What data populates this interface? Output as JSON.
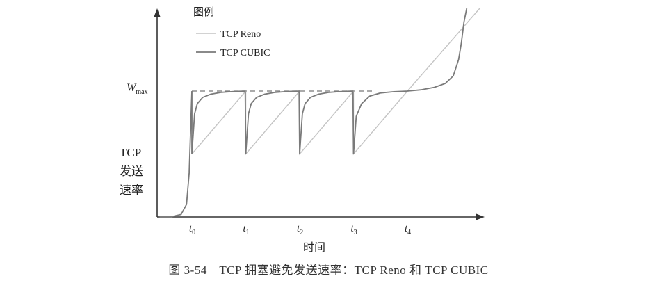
{
  "chart_data": {
    "type": "line",
    "legend": {
      "title": "图例",
      "placement": "top-left",
      "entries": [
        {
          "name": "TCP Reno",
          "color": "#c4c4c4"
        },
        {
          "name": "TCP CUBIC",
          "color": "#7a7a7a"
        }
      ]
    },
    "ylabel_lines": [
      "TCP",
      "发送",
      "速率"
    ],
    "xlabel": "时间",
    "wmax": {
      "base": "W",
      "sub": "max"
    },
    "xticks": [
      {
        "base": "t",
        "sub": "0",
        "x": 0
      },
      {
        "base": "t",
        "sub": "1",
        "x": 1
      },
      {
        "base": "t",
        "sub": "2",
        "x": 2
      },
      {
        "base": "t",
        "sub": "3",
        "x": 3
      },
      {
        "base": "t",
        "sub": "4",
        "x": 4
      }
    ],
    "xlim": [
      -0.6,
      5.4
    ],
    "ylim": [
      0,
      1.6
    ],
    "wmax_value": 1.0,
    "loss_rate": 0.5,
    "grid": false,
    "series": [
      {
        "name": "TCP Reno",
        "x": [
          0.0,
          1.0,
          1.0,
          2.0,
          2.0,
          3.0,
          3.0,
          4.0,
          5.4
        ],
        "y": [
          0.5,
          1.0,
          0.5,
          1.0,
          0.5,
          1.0,
          0.5,
          1.0,
          1.7
        ]
      },
      {
        "name": "TCP CUBIC",
        "x": [
          -0.6,
          -0.4,
          -0.2,
          -0.1,
          -0.05,
          0.0,
          0.0,
          0.05,
          0.1,
          0.2,
          0.35,
          0.55,
          0.8,
          0.99,
          1.0,
          1.05,
          1.1,
          1.2,
          1.35,
          1.55,
          1.8,
          1.99,
          2.0,
          2.05,
          2.1,
          2.2,
          2.35,
          2.55,
          2.8,
          2.99,
          3.0,
          3.05,
          3.15,
          3.3,
          3.5,
          3.75,
          4.0,
          4.25,
          4.5,
          4.7,
          4.85,
          4.95,
          5.0,
          5.05,
          5.1
        ],
        "y": [
          0.0,
          0.0,
          0.02,
          0.1,
          0.35,
          1.0,
          0.5,
          0.82,
          0.9,
          0.95,
          0.975,
          0.99,
          0.997,
          1.0,
          0.5,
          0.82,
          0.9,
          0.95,
          0.975,
          0.99,
          0.997,
          1.0,
          0.5,
          0.82,
          0.9,
          0.95,
          0.975,
          0.99,
          0.997,
          1.0,
          0.5,
          0.8,
          0.9,
          0.96,
          0.985,
          0.995,
          1.0,
          1.01,
          1.03,
          1.06,
          1.12,
          1.25,
          1.38,
          1.55,
          1.7
        ]
      }
    ]
  },
  "caption": "图 3-54　TCP 拥塞避免发送速率：TCP Reno 和 TCP CUBIC"
}
